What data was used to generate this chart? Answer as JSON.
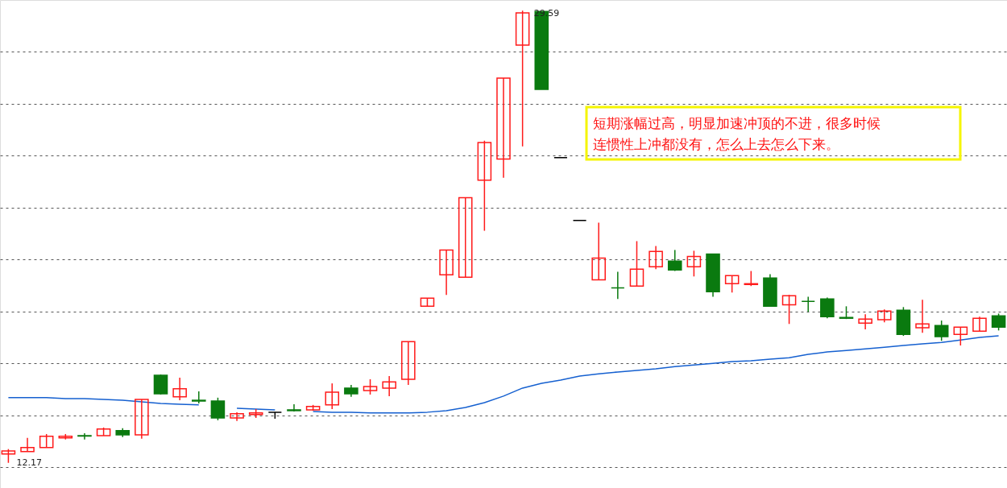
{
  "chart_data": {
    "type": "candlestick",
    "categories": [
      null,
      null,
      null,
      null,
      null,
      null,
      null,
      null,
      null,
      null,
      null,
      null,
      null,
      null,
      null,
      null,
      null,
      null,
      null,
      null,
      null,
      null,
      null,
      null,
      null,
      null,
      null,
      null,
      null,
      null,
      null,
      null,
      null,
      null,
      null,
      null,
      null,
      null,
      null,
      null,
      null,
      null,
      null,
      null,
      null,
      null,
      null,
      null,
      null,
      null,
      null,
      null,
      null
    ],
    "ohlc": [
      [
        12.51,
        12.7,
        12.17,
        12.63
      ],
      [
        12.6,
        13.13,
        12.6,
        12.76
      ],
      [
        12.76,
        13.28,
        12.76,
        13.19
      ],
      [
        13.13,
        13.28,
        13.07,
        13.19
      ],
      [
        13.22,
        13.31,
        13.07,
        13.2
      ],
      [
        13.22,
        13.53,
        13.22,
        13.47
      ],
      [
        13.41,
        13.5,
        13.16,
        13.25
      ],
      [
        13.25,
        14.61,
        13.1,
        14.61
      ],
      [
        15.54,
        15.57,
        14.8,
        14.83
      ],
      [
        14.71,
        15.45,
        14.58,
        15.02
      ],
      [
        14.58,
        14.92,
        14.46,
        14.55
      ],
      [
        14.55,
        14.68,
        13.81,
        13.9
      ],
      [
        13.9,
        14.12,
        13.78,
        14.06
      ],
      [
        14.03,
        14.24,
        13.9,
        14.09
      ],
      [
        14.12,
        14.12,
        13.87,
        14.12
      ],
      [
        14.21,
        14.43,
        14.15,
        14.18
      ],
      [
        14.21,
        14.4,
        14.18,
        14.34
      ],
      [
        14.4,
        15.23,
        14.24,
        14.89
      ],
      [
        15.05,
        15.17,
        14.71,
        14.83
      ],
      [
        14.95,
        15.39,
        14.8,
        15.11
      ],
      [
        15.05,
        15.51,
        14.74,
        15.29
      ],
      [
        15.39,
        16.84,
        15.17,
        16.84
      ],
      [
        18.2,
        18.51,
        18.2,
        18.51
      ],
      [
        19.41,
        20.37,
        18.64,
        20.37
      ],
      [
        19.32,
        22.38,
        19.32,
        22.38
      ],
      [
        23.06,
        24.58,
        21.11,
        24.51
      ],
      [
        23.87,
        26.99,
        23.15,
        26.99
      ],
      [
        28.26,
        29.59,
        24.36,
        29.5
      ],
      [
        29.56,
        29.56,
        26.56,
        26.56
      ],
      [
        23.93,
        23.93,
        23.93,
        23.93
      ],
      [
        21.51,
        21.51,
        21.51,
        21.51
      ],
      [
        19.22,
        21.42,
        19.22,
        20.06
      ],
      [
        18.91,
        19.53,
        18.48,
        18.91
      ],
      [
        18.98,
        20.71,
        18.98,
        19.63
      ],
      [
        19.72,
        20.52,
        19.63,
        20.31
      ],
      [
        19.94,
        20.37,
        19.56,
        19.6
      ],
      [
        19.72,
        20.34,
        19.35,
        20.12
      ],
      [
        20.21,
        20.21,
        18.57,
        18.76
      ],
      [
        19.07,
        19.38,
        18.73,
        19.38
      ],
      [
        19.04,
        19.56,
        18.98,
        19.07
      ],
      [
        19.29,
        19.44,
        18.2,
        18.2
      ],
      [
        18.26,
        18.64,
        17.52,
        18.61
      ],
      [
        18.39,
        18.57,
        17.99,
        18.39
      ],
      [
        18.48,
        18.54,
        17.74,
        17.8
      ],
      [
        17.77,
        18.2,
        17.71,
        17.74
      ],
      [
        17.55,
        17.89,
        17.31,
        17.71
      ],
      [
        17.68,
        18.08,
        17.58,
        18.02
      ],
      [
        18.05,
        18.17,
        17.06,
        17.12
      ],
      [
        17.37,
        18.45,
        17.18,
        17.52
      ],
      [
        17.46,
        17.65,
        16.87,
        17.03
      ],
      [
        17.12,
        17.4,
        16.69,
        17.4
      ],
      [
        17.24,
        17.8,
        17.24,
        17.74
      ],
      [
        17.83,
        17.92,
        17.27,
        17.4
      ]
    ],
    "colors": [
      "#ff1a1a",
      "#ff1a1a",
      "#ff1a1a",
      "#ff1a1a",
      "#0a7a0f",
      "#ff1a1a",
      "#0a7a0f",
      "#ff1a1a",
      "#0a7a0f",
      "#ff1a1a",
      "#0a7a0f",
      "#0a7a0f",
      "#ff1a1a",
      "#ff1a1a",
      "#000000",
      "#0a7a0f",
      "#ff1a1a",
      "#ff1a1a",
      "#0a7a0f",
      "#ff1a1a",
      "#ff1a1a",
      "#ff1a1a",
      "#ff1a1a",
      "#ff1a1a",
      "#ff1a1a",
      "#ff1a1a",
      "#ff1a1a",
      "#ff1a1a",
      "#0a7a0f",
      "#000000",
      "#000000",
      "#ff1a1a",
      "#0a7a0f",
      "#ff1a1a",
      "#ff1a1a",
      "#0a7a0f",
      "#ff1a1a",
      "#0a7a0f",
      "#ff1a1a",
      "#ff1a1a",
      "#0a7a0f",
      "#ff1a1a",
      "#0a7a0f",
      "#0a7a0f",
      "#0a7a0f",
      "#ff1a1a",
      "#ff1a1a",
      "#0a7a0f",
      "#ff1a1a",
      "#0a7a0f",
      "#ff1a1a",
      "#ff1a1a",
      "#0a7a0f"
    ],
    "series": [
      {
        "type": "line",
        "color": "#1560d0",
        "values": [
          14.68,
          14.68,
          14.68,
          14.64,
          14.64,
          14.61,
          14.58,
          14.52,
          14.46,
          14.43,
          14.4,
          null,
          14.27,
          14.24,
          14.21,
          null,
          14.15,
          14.12,
          14.12,
          14.09,
          14.09,
          14.09,
          14.12,
          14.18,
          14.3,
          14.49,
          14.74,
          15.05,
          15.23,
          15.36,
          15.51,
          15.6,
          15.67,
          15.73,
          15.79,
          15.88,
          15.94,
          16.0,
          16.07,
          16.1,
          16.16,
          16.22,
          16.35,
          16.44,
          16.5,
          16.56,
          16.62,
          16.69,
          16.75,
          16.81,
          16.9,
          17.0,
          17.06
        ]
      }
    ],
    "ylim": [
      11.2,
      30.0
    ],
    "yticks": [
      {
        "value": 12,
        "label": null
      },
      {
        "value": 14,
        "label": null
      },
      {
        "value": 16,
        "label": null
      },
      {
        "value": 18,
        "label": null
      },
      {
        "value": 20,
        "label": null
      },
      {
        "value": 22,
        "label": null
      },
      {
        "value": 24,
        "label": null
      },
      {
        "value": 26,
        "label": null
      },
      {
        "value": 28,
        "label": null
      }
    ],
    "grid": "y",
    "tick_labels": false,
    "annotations": [
      {
        "text": "29.59",
        "y": 29.59
      },
      "12.17",
      "短期涨幅过高，明显加速冲顶的不进，很多时候连惯性上冲都没有，怎么上去怎么下来。"
    ]
  }
}
